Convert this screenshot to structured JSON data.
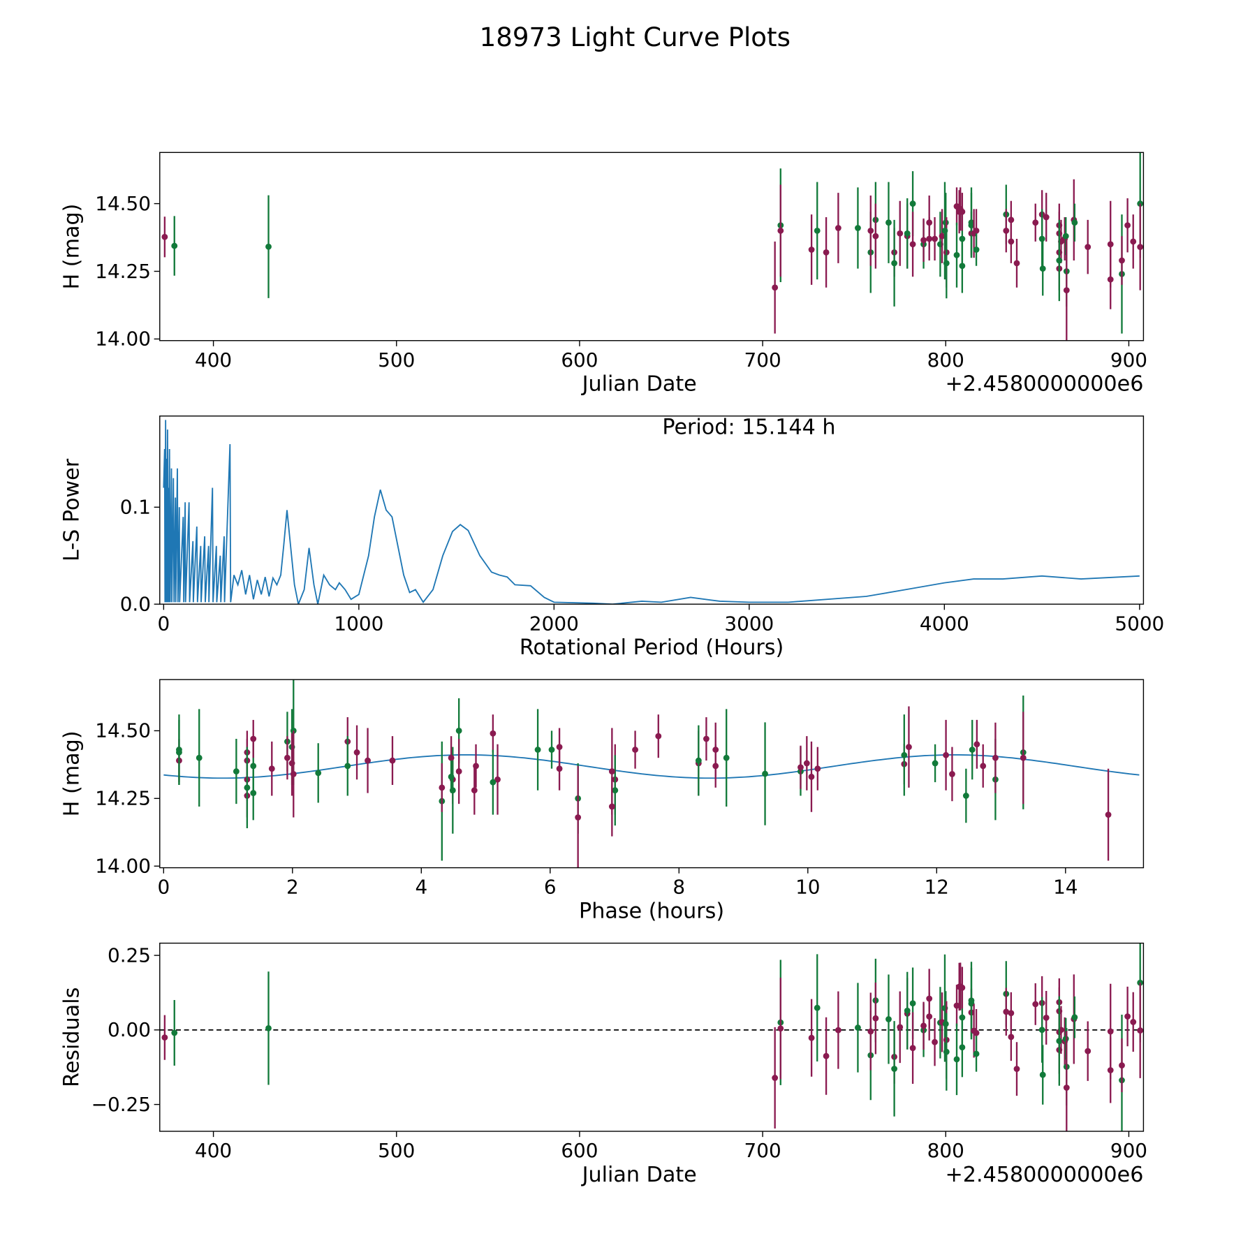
{
  "title": "18973 Light Curve Plots",
  "colors": {
    "filter_a": "#8a1a50",
    "filter_b": "#127a3a",
    "line": "#1f77b4"
  },
  "chart_data": [
    {
      "type": "scatter",
      "id": "lightcurve",
      "xlabel": "Julian Date",
      "ylabel": "H (mag)",
      "offset_label": "+2.4580000000e6",
      "xlim": [
        370.7,
        908
      ],
      "ylim": [
        13.994,
        14.689
      ],
      "xticks": [
        400,
        500,
        600,
        700,
        800,
        900
      ],
      "yticks": [
        14.0,
        14.25,
        14.5
      ],
      "points": [
        [
          "a",
          373.4,
          14.377,
          0.075
        ],
        [
          "b",
          378.7,
          14.344,
          0.11
        ],
        [
          "b",
          430.1,
          14.341,
          0.19
        ],
        [
          "a",
          706.7,
          14.19,
          0.17
        ],
        [
          "b",
          709.8,
          14.42,
          0.21
        ],
        [
          "a",
          709.8,
          14.4,
          0.17
        ],
        [
          "a",
          726.7,
          14.33,
          0.13
        ],
        [
          "b",
          729.8,
          14.4,
          0.18
        ],
        [
          "a",
          734.7,
          14.32,
          0.13
        ],
        [
          "a",
          741.3,
          14.41,
          0.13
        ],
        [
          "b",
          752,
          14.41,
          0.15
        ],
        [
          "b",
          759,
          14.32,
          0.15
        ],
        [
          "a",
          759,
          14.4,
          0.13
        ],
        [
          "b",
          761.7,
          14.44,
          0.14
        ],
        [
          "a",
          761.7,
          14.38,
          0.12
        ],
        [
          "b",
          768.8,
          14.43,
          0.15
        ],
        [
          "a",
          771.9,
          14.32,
          0.09
        ],
        [
          "b",
          771.9,
          14.28,
          0.16
        ],
        [
          "a",
          775,
          14.39,
          0.12
        ],
        [
          "a",
          779,
          14.38,
          0.12
        ],
        [
          "b",
          779,
          14.39,
          0.13
        ],
        [
          "b",
          782,
          14.5,
          0.12
        ],
        [
          "a",
          782,
          14.35,
          0.12
        ],
        [
          "b",
          787.9,
          14.35,
          0.09
        ],
        [
          "a",
          787.9,
          14.365,
          0.08
        ],
        [
          "a",
          791,
          14.43,
          0.1
        ],
        [
          "a",
          791,
          14.37,
          0.08
        ],
        [
          "a",
          794,
          14.37,
          0.08
        ],
        [
          "b",
          797,
          14.35,
          0.12
        ],
        [
          "a",
          798,
          14.38,
          0.1
        ],
        [
          "b",
          799.5,
          14.4,
          0.18
        ],
        [
          "b",
          800,
          14.43,
          0.11
        ],
        [
          "a",
          800.4,
          14.32,
          0.13
        ],
        [
          "b",
          800.4,
          14.28,
          0.13
        ],
        [
          "a",
          806,
          14.49,
          0.07
        ],
        [
          "a",
          807.4,
          14.47,
          0.08
        ],
        [
          "a",
          808,
          14.48,
          0.08
        ],
        [
          "b",
          806,
          14.31,
          0.12
        ],
        [
          "b",
          809,
          14.37,
          0.09
        ],
        [
          "b",
          809,
          14.27,
          0.1
        ],
        [
          "a",
          809,
          14.47,
          0.07
        ],
        [
          "b",
          814,
          14.43,
          0.13
        ],
        [
          "a",
          814,
          14.39,
          0.08
        ],
        [
          "b",
          814,
          14.42,
          0.12
        ],
        [
          "a",
          815.4,
          14.39,
          0.09
        ],
        [
          "a",
          816.7,
          14.4,
          0.08
        ],
        [
          "b",
          816.7,
          14.33,
          0.06
        ],
        [
          "b",
          833,
          14.46,
          0.11
        ],
        [
          "a",
          833,
          14.4,
          0.08
        ],
        [
          "a",
          835.7,
          14.36,
          0.08
        ],
        [
          "a",
          835.7,
          14.44,
          0.07
        ],
        [
          "a",
          838.8,
          14.28,
          0.09
        ],
        [
          "a",
          849,
          14.43,
          0.07
        ],
        [
          "a",
          852.6,
          14.46,
          0.09
        ],
        [
          "b",
          852.6,
          14.37,
          0.11
        ],
        [
          "b",
          853,
          14.26,
          0.1
        ],
        [
          "a",
          854.9,
          14.45,
          0.09
        ],
        [
          "a",
          862,
          14.42,
          0.08
        ],
        [
          "a",
          862,
          14.39,
          0.08
        ],
        [
          "a",
          863,
          14.36,
          0.08
        ],
        [
          "a",
          862,
          14.32,
          0.08
        ],
        [
          "a",
          862,
          14.26,
          0.08
        ],
        [
          "b",
          862,
          14.29,
          0.15
        ],
        [
          "a",
          865,
          14.37,
          0.08
        ],
        [
          "b",
          865.6,
          14.38,
          0.07
        ],
        [
          "b",
          866,
          14.25,
          0.13
        ],
        [
          "a",
          866,
          14.18,
          0.19
        ],
        [
          "a",
          870,
          14.44,
          0.15
        ],
        [
          "b",
          870.4,
          14.43,
          0.07
        ],
        [
          "a",
          877.6,
          14.34,
          0.1
        ],
        [
          "a",
          890,
          14.35,
          0.16
        ],
        [
          "a",
          890,
          14.22,
          0.11
        ],
        [
          "b",
          896.2,
          14.24,
          0.22
        ],
        [
          "a",
          896.2,
          14.29,
          0.09
        ],
        [
          "a",
          899.3,
          14.42,
          0.1
        ],
        [
          "a",
          902.4,
          14.36,
          0.1
        ],
        [
          "b",
          906.2,
          14.5,
          0.2
        ],
        [
          "a",
          906.2,
          14.34,
          0.16
        ]
      ]
    },
    {
      "type": "line",
      "id": "periodogram",
      "xlabel": "Rotational Period (Hours)",
      "ylabel": "L-S Power",
      "annotation": "Period: 15.144 h",
      "period_hours": 15.144,
      "xlim": [
        -20,
        5020
      ],
      "ylim": [
        0,
        0.194
      ],
      "xticks": [
        0,
        1000,
        2000,
        3000,
        4000,
        5000
      ],
      "yticks": [
        0.0,
        0.1
      ],
      "noise_peaks": [
        [
          5,
          0.16
        ],
        [
          10,
          0.19
        ],
        [
          15,
          0.15
        ],
        [
          20,
          0.18
        ],
        [
          25,
          0.12
        ],
        [
          30,
          0.16
        ],
        [
          40,
          0.14
        ],
        [
          50,
          0.13
        ],
        [
          60,
          0.11
        ],
        [
          70,
          0.14
        ],
        [
          80,
          0.1
        ],
        [
          100,
          0.09
        ],
        [
          110,
          0.105
        ],
        [
          130,
          0.105
        ],
        [
          150,
          0.065
        ],
        [
          170,
          0.08
        ],
        [
          190,
          0.06
        ],
        [
          210,
          0.07
        ],
        [
          230,
          0.06
        ],
        [
          250,
          0.12
        ],
        [
          270,
          0.06
        ],
        [
          290,
          0.05
        ],
        [
          310,
          0.07
        ],
        [
          340,
          0.165
        ]
      ],
      "points": [
        [
          360,
          0.03
        ],
        [
          380,
          0.02
        ],
        [
          400,
          0.035
        ],
        [
          420,
          0.01
        ],
        [
          440,
          0.03
        ],
        [
          460,
          0.005
        ],
        [
          480,
          0.025
        ],
        [
          500,
          0.01
        ],
        [
          520,
          0.028
        ],
        [
          540,
          0.008
        ],
        [
          560,
          0.027
        ],
        [
          580,
          0.02
        ],
        [
          600,
          0.03
        ],
        [
          615,
          0.06
        ],
        [
          632,
          0.097
        ],
        [
          650,
          0.06
        ],
        [
          670,
          0.02
        ],
        [
          690,
          0.0
        ],
        [
          720,
          0.015
        ],
        [
          745,
          0.058
        ],
        [
          770,
          0.02
        ],
        [
          790,
          0.0
        ],
        [
          820,
          0.03
        ],
        [
          850,
          0.02
        ],
        [
          880,
          0.015
        ],
        [
          900,
          0.022
        ],
        [
          930,
          0.015
        ],
        [
          960,
          0.005
        ],
        [
          1000,
          0.01
        ],
        [
          1050,
          0.05
        ],
        [
          1080,
          0.09
        ],
        [
          1110,
          0.118
        ],
        [
          1140,
          0.097
        ],
        [
          1170,
          0.09
        ],
        [
          1200,
          0.06
        ],
        [
          1230,
          0.03
        ],
        [
          1260,
          0.012
        ],
        [
          1290,
          0.015
        ],
        [
          1330,
          0.002
        ],
        [
          1380,
          0.015
        ],
        [
          1430,
          0.05
        ],
        [
          1480,
          0.075
        ],
        [
          1520,
          0.082
        ],
        [
          1560,
          0.076
        ],
        [
          1620,
          0.05
        ],
        [
          1680,
          0.033
        ],
        [
          1720,
          0.03
        ],
        [
          1760,
          0.028
        ],
        [
          1800,
          0.02
        ],
        [
          1880,
          0.019
        ],
        [
          1950,
          0.007
        ],
        [
          2000,
          0.002
        ],
        [
          2200,
          0.001
        ],
        [
          2300,
          0.0
        ],
        [
          2450,
          0.003
        ],
        [
          2550,
          0.002
        ],
        [
          2700,
          0.007
        ],
        [
          2850,
          0.003
        ],
        [
          3000,
          0.002
        ],
        [
          3200,
          0.002
        ],
        [
          3600,
          0.008
        ],
        [
          3800,
          0.015
        ],
        [
          4000,
          0.022
        ],
        [
          4150,
          0.026
        ],
        [
          4300,
          0.026
        ],
        [
          4500,
          0.029
        ],
        [
          4700,
          0.026
        ],
        [
          5000,
          0.029
        ]
      ]
    },
    {
      "type": "scatter",
      "id": "phased",
      "xlabel": "Phase (hours)",
      "ylabel": "H (mag)",
      "xlim": [
        -0.06,
        15.21
      ],
      "ylim": [
        13.994,
        14.689
      ],
      "xticks": [
        0,
        2,
        4,
        6,
        8,
        10,
        12,
        14
      ],
      "yticks": [
        14.0,
        14.25,
        14.5
      ],
      "model": {
        "mean": 14.368,
        "amplitude": 0.043,
        "peak_phase": 4.7,
        "harmonic": 2
      }
    },
    {
      "type": "scatter",
      "id": "residuals",
      "xlabel": "Julian Date",
      "ylabel": "Residuals",
      "offset_label": "+2.4580000000e6",
      "xlim": [
        370.7,
        908
      ],
      "ylim": [
        -0.34,
        0.291
      ],
      "xticks": [
        400,
        500,
        600,
        700,
        800,
        900
      ],
      "yticks": [
        -0.25,
        0.0,
        0.25
      ],
      "ytick_labels": [
        "−0.25",
        "0.00",
        "0.25"
      ]
    }
  ]
}
